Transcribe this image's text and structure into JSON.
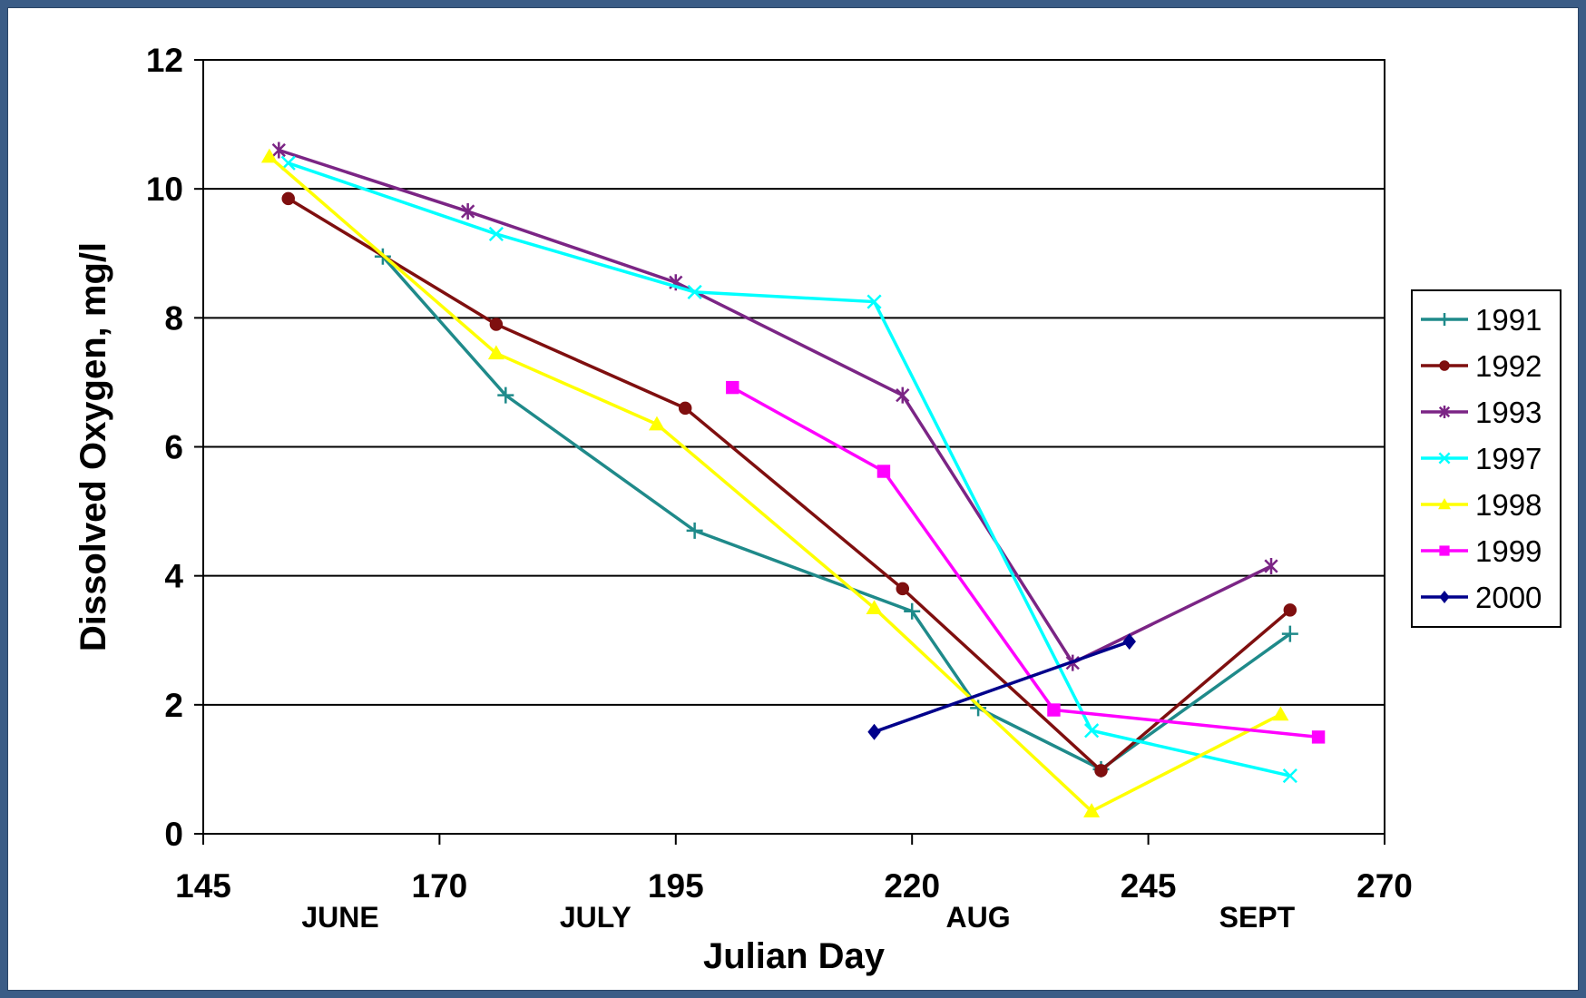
{
  "chart_data": {
    "type": "line",
    "title": "",
    "xlabel": "Julian Day",
    "ylabel": "Dissolved Oxygen, mg/l",
    "xlim": [
      145,
      270
    ],
    "ylim": [
      0,
      12
    ],
    "x_ticks": [
      145,
      170,
      195,
      220,
      245,
      270
    ],
    "y_ticks": [
      0,
      2,
      4,
      6,
      8,
      10,
      12
    ],
    "grid": "horizontal",
    "legend_position": "right",
    "month_labels": [
      {
        "label": "JUNE",
        "x": 159.5
      },
      {
        "label": "JULY",
        "x": 186.5
      },
      {
        "label": "AUG",
        "x": 227
      },
      {
        "label": "SEPT",
        "x": 256.5
      }
    ],
    "series": [
      {
        "name": "1991",
        "color": "#1f8a8a",
        "marker": "plus",
        "x": [
          164,
          177,
          197,
          220,
          227,
          240,
          260
        ],
        "y": [
          8.95,
          6.8,
          4.7,
          3.45,
          1.95,
          1.0,
          3.1
        ]
      },
      {
        "name": "1992",
        "color": "#7f0f0f",
        "marker": "circle",
        "x": [
          154,
          176,
          196,
          219,
          240,
          260
        ],
        "y": [
          9.85,
          7.9,
          6.6,
          3.8,
          0.98,
          3.47
        ]
      },
      {
        "name": "1993",
        "color": "#7b2585",
        "marker": "star",
        "x": [
          153,
          173,
          195,
          219,
          237,
          258
        ],
        "y": [
          10.6,
          9.65,
          8.55,
          6.8,
          2.65,
          4.15
        ]
      },
      {
        "name": "1997",
        "color": "#00ffff",
        "marker": "x",
        "x": [
          154,
          176,
          197,
          216,
          239,
          260
        ],
        "y": [
          10.4,
          9.3,
          8.4,
          8.25,
          1.6,
          0.9
        ]
      },
      {
        "name": "1998",
        "color": "#ffff00",
        "marker": "triangle",
        "x": [
          152,
          176,
          193,
          216,
          239,
          259
        ],
        "y": [
          10.5,
          7.45,
          6.35,
          3.5,
          0.35,
          1.85
        ]
      },
      {
        "name": "1999",
        "color": "#ff00ff",
        "marker": "square",
        "x": [
          201,
          217,
          235,
          263
        ],
        "y": [
          6.92,
          5.62,
          1.92,
          1.5
        ]
      },
      {
        "name": "2000",
        "color": "#00008b",
        "marker": "diamond",
        "x": [
          216,
          243
        ],
        "y": [
          1.58,
          2.98
        ]
      }
    ]
  }
}
